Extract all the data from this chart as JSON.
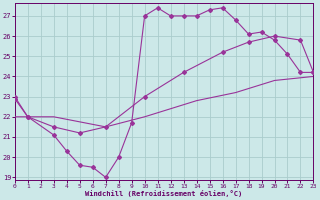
{
  "xlabel": "Windchill (Refroidissement éolien,°C)",
  "bg_color": "#cce8e8",
  "grid_color": "#aacccc",
  "line_color": "#993399",
  "xlim": [
    0,
    23
  ],
  "ylim": [
    18.85,
    27.65
  ],
  "yticks": [
    19,
    20,
    21,
    22,
    23,
    24,
    25,
    26,
    27
  ],
  "xticks": [
    0,
    1,
    2,
    3,
    4,
    5,
    6,
    7,
    8,
    9,
    10,
    11,
    12,
    13,
    14,
    15,
    16,
    17,
    18,
    19,
    20,
    21,
    22,
    23
  ],
  "line1_x": [
    0,
    1,
    3,
    4,
    5,
    6,
    7,
    8,
    9,
    10,
    11,
    12,
    13,
    14,
    15,
    16,
    17,
    18,
    19,
    20,
    21,
    22,
    23
  ],
  "line1_y": [
    23.0,
    22.0,
    21.1,
    20.3,
    19.6,
    19.5,
    19.0,
    20.0,
    21.7,
    27.0,
    27.4,
    27.0,
    27.0,
    27.0,
    27.3,
    27.4,
    26.8,
    26.1,
    26.2,
    25.8,
    25.1,
    24.2,
    24.2
  ],
  "line2_x": [
    0,
    1,
    3,
    5,
    7,
    10,
    13,
    16,
    18,
    20,
    22,
    23
  ],
  "line2_y": [
    22.9,
    22.0,
    21.5,
    21.2,
    21.5,
    23.0,
    24.2,
    25.2,
    25.7,
    26.0,
    25.8,
    24.2
  ],
  "line3_x": [
    0,
    3,
    7,
    10,
    14,
    17,
    20,
    23
  ],
  "line3_y": [
    22.0,
    22.0,
    21.5,
    22.0,
    22.8,
    23.2,
    23.8,
    24.0
  ]
}
